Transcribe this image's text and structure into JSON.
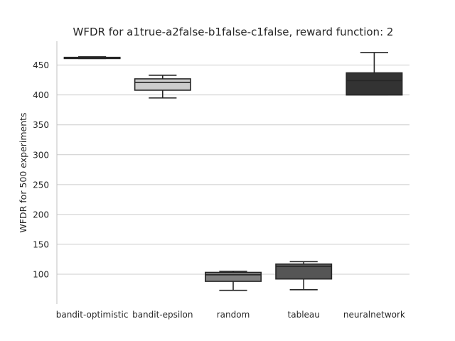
{
  "chart_data": {
    "type": "box",
    "title": "WFDR for a1true-a2false-b1false-c1false, reward function: 2",
    "xlabel": "",
    "ylabel": "WFDR for 500 experiments",
    "ylim": [
      50,
      490
    ],
    "yticks": [
      100,
      150,
      200,
      250,
      300,
      350,
      400,
      450
    ],
    "grid": "horizontal",
    "categories": [
      "bandit-optimistic",
      "bandit-epsilon",
      "random",
      "tableau",
      "neuralnetwork"
    ],
    "boxes": [
      {
        "min": 461,
        "q1": 461,
        "median": 462,
        "q3": 463,
        "max": 464,
        "color": "#e8e8e8"
      },
      {
        "min": 395,
        "q1": 408,
        "median": 421,
        "q3": 427,
        "max": 433,
        "color": "#cccccc"
      },
      {
        "min": 73,
        "q1": 88,
        "median": 99,
        "q3": 103,
        "max": 105,
        "color": "#808080"
      },
      {
        "min": 74,
        "q1": 92,
        "median": 113,
        "q3": 117,
        "max": 121,
        "color": "#555555"
      },
      {
        "min": 400,
        "q1": 400,
        "median": 424,
        "q3": 437,
        "max": 471,
        "color": "#333333"
      }
    ]
  }
}
